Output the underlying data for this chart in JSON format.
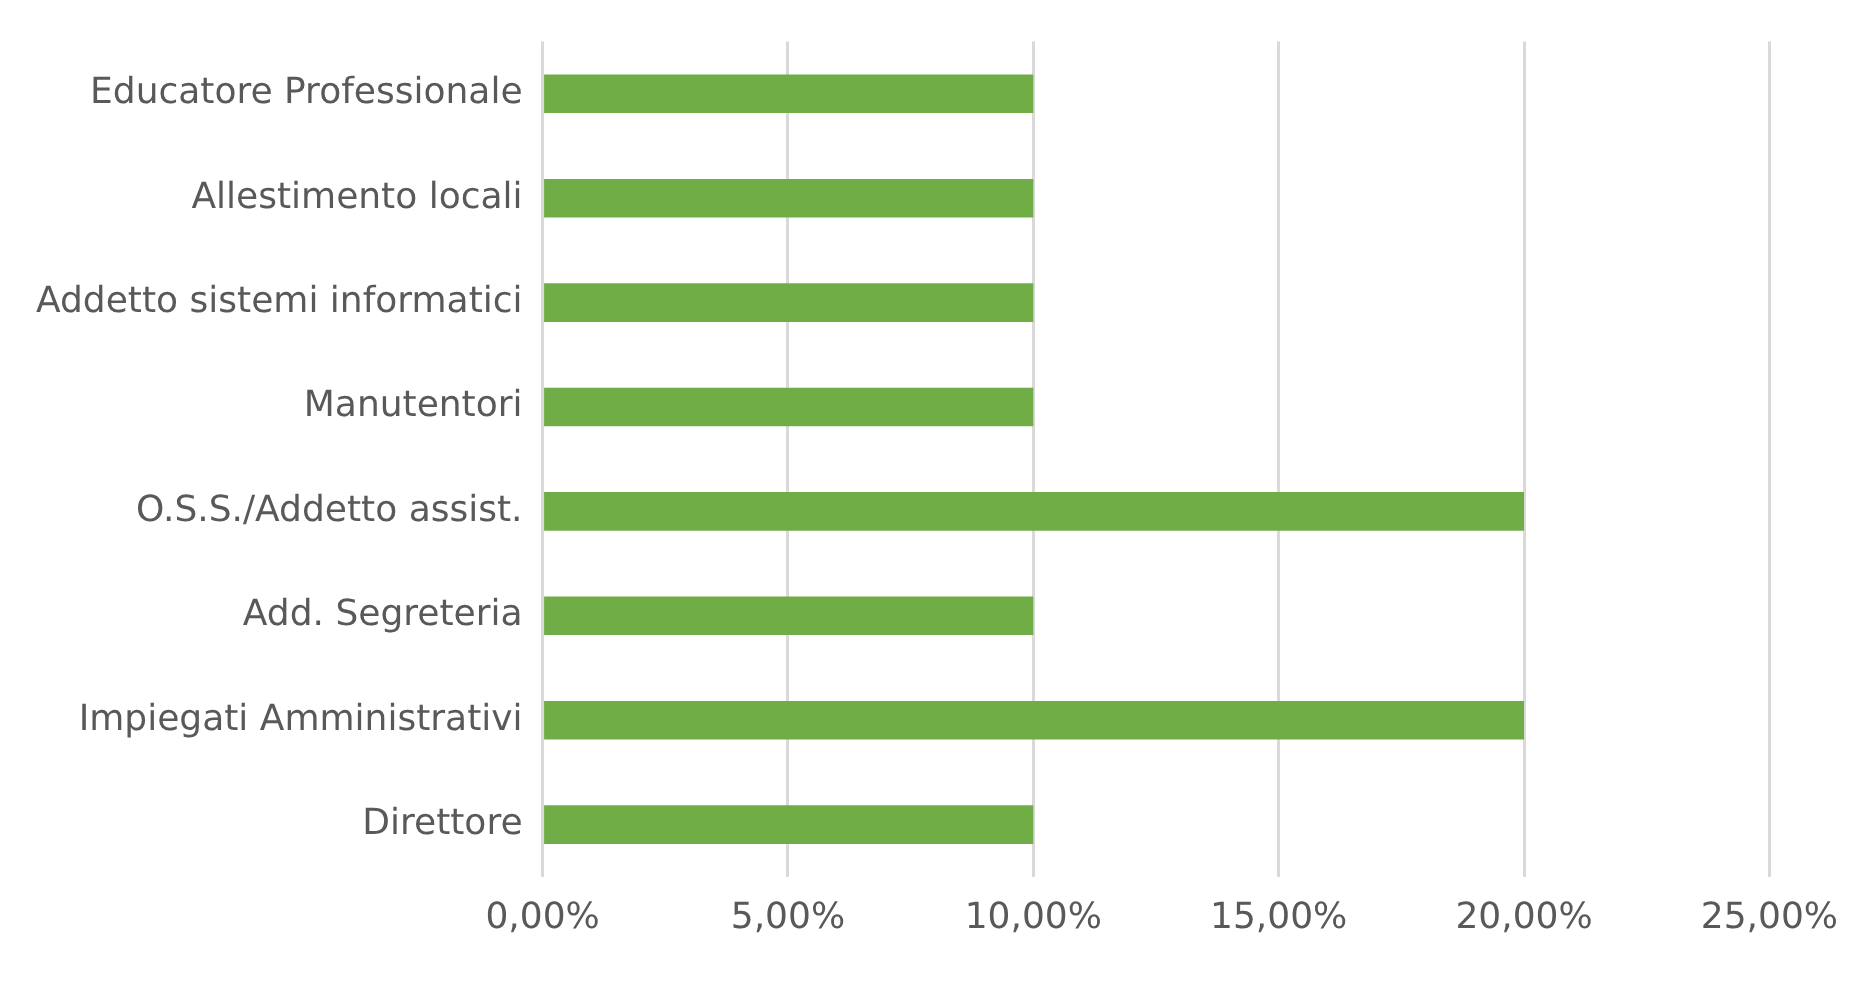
{
  "chart_data": {
    "type": "bar",
    "orientation": "horizontal",
    "categories": [
      "Educatore Professionale",
      "Allestimento locali",
      "Addetto sistemi informatici",
      "Manutentori",
      "O.S.S./Addetto assist.",
      "Add. Segreteria",
      "Impiegati Amministrativi",
      "Direttore"
    ],
    "values": [
      10,
      10,
      10,
      10,
      20,
      10,
      20,
      10
    ],
    "color": "#70ad47",
    "xlim": [
      0,
      25
    ],
    "xticks": [
      {
        "value": 0,
        "label": "0,00%"
      },
      {
        "value": 5,
        "label": "5,00%"
      },
      {
        "value": 10,
        "label": "10,00%"
      },
      {
        "value": 15,
        "label": "15,00%"
      },
      {
        "value": 20,
        "label": "20,00%"
      },
      {
        "value": 25,
        "label": "25,00%"
      }
    ],
    "grid": "x",
    "legend": false
  }
}
